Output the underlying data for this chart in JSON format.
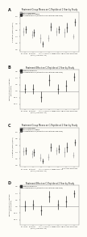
{
  "panels": [
    {
      "label": "A",
      "title": "Treatment Group Means on C-Peptide at 1 Year by Study",
      "ylabel": "C-Peptide (nmol/L/min)",
      "ylim": [
        -0.05,
        1.15
      ],
      "yticks": [
        0.0,
        0.2,
        0.4,
        0.6,
        0.8,
        1.0
      ],
      "hline": null,
      "type": "means",
      "trials": [
        {
          "name": "Rituximab",
          "x": 0,
          "ctrl_mean": 0.55,
          "ctrl_lo": 0.43,
          "ctrl_hi": 0.67,
          "trt_mean": 0.62,
          "trt_lo": 0.5,
          "trt_hi": 0.74
        },
        {
          "name": "Abatacept\n(IM+IV)",
          "x": 1,
          "ctrl_mean": 0.46,
          "ctrl_lo": 0.35,
          "ctrl_hi": 0.57,
          "trt_mean": 0.52,
          "trt_lo": 0.41,
          "trt_hi": 0.63
        },
        {
          "name": "Anti-IL-2\n(Low Dose ATG)",
          "x": 2,
          "ctrl_mean": 0.35,
          "ctrl_lo": 0.22,
          "ctrl_hi": 0.48,
          "trt_mean": 0.18,
          "trt_lo": 0.1,
          "trt_hi": 0.26
        },
        {
          "name": "Low Dose ATG",
          "x": 3,
          "ctrl_mean": 0.36,
          "ctrl_lo": 0.26,
          "ctrl_hi": 0.46,
          "trt_mean": 0.7,
          "trt_lo": 0.57,
          "trt_hi": 0.83
        },
        {
          "name": "High Dose ATG",
          "x": 4,
          "ctrl_mean": 0.55,
          "ctrl_lo": 0.43,
          "ctrl_hi": 0.67,
          "trt_mean": 0.62,
          "trt_lo": 0.5,
          "trt_hi": 0.74
        },
        {
          "name": "Golimumab",
          "x": 5,
          "ctrl_mean": 0.52,
          "ctrl_lo": 0.38,
          "ctrl_hi": 0.66,
          "trt_mean": 0.68,
          "trt_lo": 0.54,
          "trt_hi": 0.82
        },
        {
          "name": "Teplizumab",
          "x": 6,
          "ctrl_mean": 0.41,
          "ctrl_lo": 0.33,
          "ctrl_hi": 0.49,
          "trt_mean": 0.84,
          "trt_lo": 0.74,
          "trt_hi": 0.94
        }
      ],
      "legend_items": [
        "Control Group Means",
        "Interventional Group Means",
        "Significant Difference (Interventional vs Control p-value <0.05)"
      ]
    },
    {
      "label": "B",
      "title": "Treatment Effect on C-Peptide at 1 Year by Study",
      "ylabel": "Treatment Effect C-Peptide\n(nmol/L/min)",
      "ylim": [
        -0.55,
        0.65
      ],
      "yticks": [
        -0.4,
        -0.2,
        0.0,
        0.2,
        0.4,
        0.6
      ],
      "hline": 0.0,
      "type": "effect",
      "trials": [
        {
          "name": "Rituximab",
          "x": 0,
          "mean": 0.07,
          "lo": -0.07,
          "hi": 0.21
        },
        {
          "name": "Abatacept\n(IM+IV)",
          "x": 1,
          "mean": 0.06,
          "lo": -0.09,
          "hi": 0.21
        },
        {
          "name": "Anti-IL-2\n(Low Dose ATG)",
          "x": 2,
          "mean": -0.17,
          "lo": -0.32,
          "hi": -0.02
        },
        {
          "name": "Low Dose ATG",
          "x": 3,
          "mean": 0.34,
          "lo": 0.17,
          "hi": 0.51
        },
        {
          "name": "High Dose ATG",
          "x": 4,
          "mean": 0.07,
          "lo": -0.08,
          "hi": 0.22
        },
        {
          "name": "Golimumab",
          "x": 5,
          "mean": 0.16,
          "lo": -0.01,
          "hi": 0.33
        },
        {
          "name": "Teplizumab",
          "x": 6,
          "mean": 0.43,
          "lo": 0.3,
          "hi": 0.56
        }
      ],
      "legend_items": [
        "Group Mean Difference",
        "Significant Difference (Interventional vs Control p-value <0.05)"
      ]
    },
    {
      "label": "C",
      "title": "Treatment Group Means on C-Peptide at 2 Year by Study",
      "ylabel": "C-Peptide (nmol/L/min)",
      "ylim": [
        -0.05,
        1.15
      ],
      "yticks": [
        0.0,
        0.2,
        0.4,
        0.6,
        0.8,
        1.0
      ],
      "hline": null,
      "type": "means",
      "trials": [
        {
          "name": "Rituximab",
          "x": 0,
          "ctrl_mean": 0.42,
          "ctrl_lo": 0.3,
          "ctrl_hi": 0.54,
          "trt_mean": 0.44,
          "trt_lo": 0.32,
          "trt_hi": 0.56
        },
        {
          "name": "Abatacept\n(IM+IV)",
          "x": 1,
          "ctrl_mean": 0.34,
          "ctrl_lo": 0.24,
          "ctrl_hi": 0.44,
          "trt_mean": 0.4,
          "trt_lo": 0.29,
          "trt_hi": 0.51
        },
        {
          "name": "Anti-IL-2\n(Low Dose ATG)",
          "x": 2,
          "ctrl_mean": 0.24,
          "ctrl_lo": 0.13,
          "ctrl_hi": 0.35,
          "trt_mean": 0.13,
          "trt_lo": 0.06,
          "trt_hi": 0.2
        },
        {
          "name": "Low Dose ATG",
          "x": 3,
          "ctrl_mean": 0.25,
          "ctrl_lo": 0.15,
          "ctrl_hi": 0.35,
          "trt_mean": 0.55,
          "trt_lo": 0.42,
          "trt_hi": 0.68
        },
        {
          "name": "High Dose ATG",
          "x": 4,
          "ctrl_mean": 0.44,
          "ctrl_lo": 0.32,
          "ctrl_hi": 0.56,
          "trt_mean": 0.5,
          "trt_lo": 0.38,
          "trt_hi": 0.62
        },
        {
          "name": "Golimumab",
          "x": 5,
          "ctrl_mean": 0.4,
          "ctrl_lo": 0.26,
          "ctrl_hi": 0.54,
          "trt_mean": 0.55,
          "trt_lo": 0.41,
          "trt_hi": 0.69
        },
        {
          "name": "Teplizumab",
          "x": 6,
          "ctrl_mean": 0.31,
          "ctrl_lo": 0.23,
          "ctrl_hi": 0.39,
          "trt_mean": 0.7,
          "trt_lo": 0.6,
          "trt_hi": 0.8
        }
      ],
      "legend_items": [
        "Control Group Means",
        "Interventional Group Means",
        "Significant Difference (Interventional vs Control p-value <0.05)"
      ]
    },
    {
      "label": "D",
      "title": "Treatment Effect on C-Peptide at 2 Year by Study",
      "ylabel": "Treatment Effect C-Peptide\n(nmol/L/min)",
      "ylim": [
        -0.55,
        0.65
      ],
      "yticks": [
        -0.4,
        -0.2,
        0.0,
        0.2,
        0.4,
        0.6
      ],
      "hline": 0.0,
      "type": "effect",
      "trials": [
        {
          "name": "Rituximab",
          "x": 0,
          "mean": 0.02,
          "lo": -0.13,
          "hi": 0.17
        },
        {
          "name": "Abatacept\n(IM+IV)",
          "x": 1,
          "mean": 0.06,
          "lo": -0.08,
          "hi": 0.2
        },
        {
          "name": "Anti-IL-2\n(Low Dose ATG)",
          "x": 2,
          "mean": -0.11,
          "lo": -0.26,
          "hi": 0.04
        },
        {
          "name": "Low Dose ATG",
          "x": 3,
          "mean": 0.3,
          "lo": 0.13,
          "hi": 0.47
        },
        {
          "name": "High Dose ATG",
          "x": 4,
          "mean": 0.06,
          "lo": -0.09,
          "hi": 0.21
        },
        {
          "name": "Golimumab",
          "x": 5,
          "mean": 0.15,
          "lo": -0.02,
          "hi": 0.32
        },
        {
          "name": "Teplizumab",
          "x": 6,
          "mean": 0.39,
          "lo": 0.27,
          "hi": 0.51
        }
      ],
      "legend_items": [
        "Group Mean Difference",
        "Significant Difference (Interventional vs Control p-value <0.05)"
      ]
    }
  ],
  "background_color": "#fdfcf7",
  "ctrl_color": "#aaaaaa",
  "trt_color": "#333333",
  "dot_color": "#333333",
  "line_color": "#555555"
}
